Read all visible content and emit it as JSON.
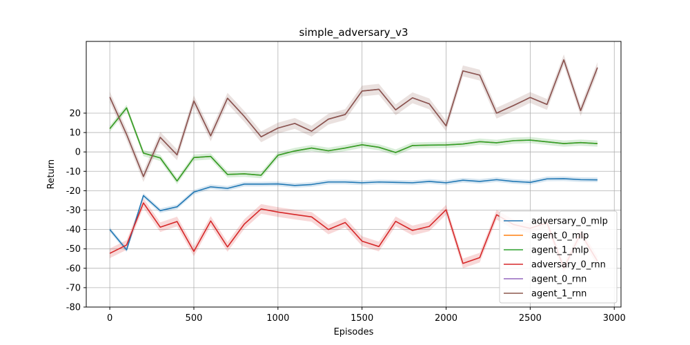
{
  "chart_data": {
    "type": "line",
    "title": "simple_adversary_v3",
    "xlabel": "Episodes",
    "ylabel": "Return",
    "xlim": [
      -140,
      3040
    ],
    "ylim": [
      -80,
      57
    ],
    "xticks": [
      0,
      500,
      1000,
      1500,
      2000,
      2500,
      3000
    ],
    "yticks": [
      -80,
      -70,
      -60,
      -50,
      -40,
      -30,
      -20,
      -10,
      0,
      10,
      20
    ],
    "grid": true,
    "legend_position": "bottom-right",
    "x": [
      0,
      100,
      200,
      300,
      400,
      500,
      600,
      700,
      800,
      900,
      1000,
      1100,
      1200,
      1300,
      1400,
      1500,
      1600,
      1700,
      1800,
      1900,
      2000,
      2100,
      2200,
      2300,
      2400,
      2500,
      2600,
      2700,
      2800,
      2900
    ],
    "series": [
      {
        "name": "adversary_0_mlp",
        "color": "#1f77b4",
        "band": 1.2,
        "values": [
          -40,
          -50.5,
          -22.5,
          -30.3,
          -28.3,
          -20.7,
          -18,
          -18.8,
          -16.6,
          -16.6,
          -16.5,
          -17.3,
          -16.8,
          -15.5,
          -15.5,
          -15.9,
          -15.5,
          -15.7,
          -15.9,
          -15.2,
          -15.9,
          -14.6,
          -15.2,
          -14.3,
          -15.2,
          -15.7,
          -13.9,
          -13.8,
          -14.3,
          -14.4
        ]
      },
      {
        "name": "agent_0_mlp",
        "color": "#ff7f0e",
        "band": 0,
        "values": [
          12,
          22.7,
          -0.6,
          -3.1,
          -15,
          -2.9,
          -2.3,
          -11.6,
          -11.3,
          -12,
          -1.7,
          0.5,
          2,
          0.6,
          2,
          3.7,
          2.4,
          -0.3,
          3.3,
          3.5,
          3.6,
          4.1,
          5.3,
          4.7,
          5.8,
          6.1,
          5.2,
          4.3,
          4.8,
          4.3
        ]
      },
      {
        "name": "agent_1_mlp",
        "color": "#2ca02c",
        "band": 1.6,
        "values": [
          12,
          22.7,
          -0.6,
          -3.1,
          -15,
          -2.9,
          -2.3,
          -11.6,
          -11.3,
          -12,
          -1.7,
          0.5,
          2,
          0.6,
          2,
          3.7,
          2.4,
          -0.3,
          3.3,
          3.5,
          3.6,
          4.1,
          5.3,
          4.7,
          5.8,
          6.1,
          5.2,
          4.3,
          4.8,
          4.3
        ]
      },
      {
        "name": "adversary_0_rnn",
        "color": "#d62728",
        "band": 2.5,
        "values": [
          -52.3,
          -48,
          -26.3,
          -38.8,
          -35.9,
          -51.3,
          -35.6,
          -49,
          -37.2,
          -29.4,
          -31,
          -32.3,
          -33.5,
          -40,
          -36.4,
          -46,
          -48.8,
          -35.8,
          -40.5,
          -38.4,
          -29.8,
          -57.5,
          -54.5,
          -32.4,
          -37.4,
          -39.4,
          -36.5,
          -60,
          -42,
          -56.3
        ]
      },
      {
        "name": "agent_0_rnn",
        "color": "#9467bd",
        "band": 0,
        "values": [
          28.3,
          9,
          -12.7,
          7.5,
          -1.5,
          26.3,
          8.3,
          27.7,
          18.3,
          7.8,
          12.3,
          14.7,
          10.7,
          16.9,
          19.3,
          31.4,
          32.3,
          21.7,
          27.9,
          24.8,
          13.4,
          41.8,
          39.6,
          20,
          23.9,
          28.1,
          24.5,
          47.5,
          21.3,
          43.5
        ]
      },
      {
        "name": "agent_1_rnn",
        "color": "#8c564b",
        "band": 2.8,
        "values": [
          28.3,
          9,
          -12.7,
          7.5,
          -1.5,
          26.3,
          8.3,
          27.7,
          18.3,
          7.8,
          12.3,
          14.7,
          10.7,
          16.9,
          19.3,
          31.4,
          32.3,
          21.7,
          27.9,
          24.8,
          13.4,
          41.8,
          39.6,
          20,
          23.9,
          28.1,
          24.5,
          47.5,
          21.3,
          43.5
        ]
      }
    ]
  }
}
